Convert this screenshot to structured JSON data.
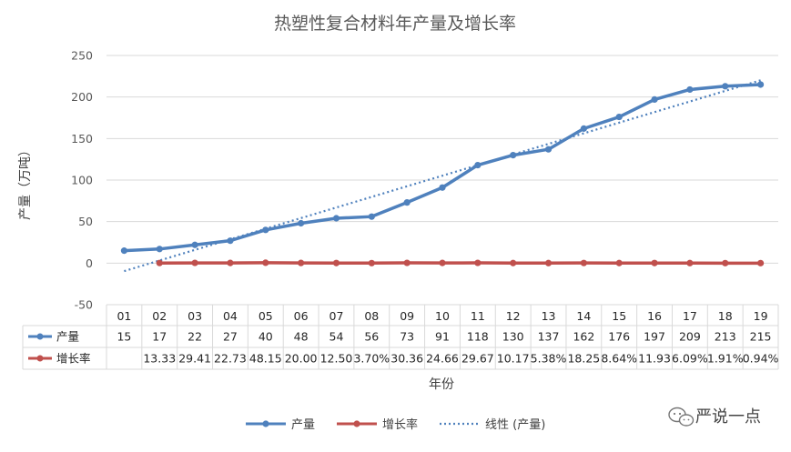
{
  "chart_data": {
    "type": "line",
    "title": "热塑性复合材料年产量及增长率",
    "xlabel": "年份",
    "ylabel": "产量（万吨）",
    "ylim": [
      -50,
      250
    ],
    "yticks": [
      "-50",
      "0",
      "50",
      "100",
      "150",
      "200",
      "250"
    ],
    "grid": true,
    "legend_position": "bottom",
    "categories": [
      "01",
      "02",
      "03",
      "04",
      "05",
      "06",
      "07",
      "08",
      "09",
      "10",
      "11",
      "12",
      "13",
      "14",
      "15",
      "16",
      "17",
      "18",
      "19"
    ],
    "series": [
      {
        "name": "产量",
        "color": "#4F81BD",
        "values": [
          15,
          17,
          22,
          27,
          40,
          48,
          54,
          56,
          73,
          91,
          118,
          130,
          137,
          162,
          176,
          197,
          209,
          213,
          215
        ],
        "table_labels": [
          "15",
          "17",
          "22",
          "27",
          "40",
          "48",
          "54",
          "56",
          "73",
          "91",
          "118",
          "130",
          "137",
          "162",
          "176",
          "197",
          "209",
          "213",
          "215"
        ]
      },
      {
        "name": "增长率",
        "color": "#C0504D",
        "values": [
          null,
          13.33,
          29.41,
          22.73,
          48.15,
          20.0,
          12.5,
          3.7,
          30.36,
          24.66,
          29.67,
          10.17,
          5.38,
          18.25,
          8.64,
          11.93,
          6.09,
          1.91,
          0.94
        ],
        "plotted_values": [
          null,
          0.1333,
          0.2941,
          0.2273,
          0.4815,
          0.2,
          0.125,
          0.037,
          0.3036,
          0.2466,
          0.2967,
          0.1017,
          0.0538,
          0.1825,
          0.0864,
          0.1193,
          0.0609,
          0.0191,
          0.0094
        ],
        "table_labels": [
          "",
          "13.33",
          "29.41",
          "22.73",
          "48.15",
          "20.00",
          "12.50",
          "3.70%",
          "30.36",
          "24.66",
          "29.67",
          "10.17",
          "5.38%",
          "18.25",
          "8.64%",
          "11.93",
          "6.09%",
          "1.91%",
          "0.94%"
        ]
      }
    ],
    "trendline": {
      "name": "线性 (产量)",
      "type": "linear",
      "of_series": "产量",
      "color": "#4F81BD"
    }
  },
  "watermark": {
    "text": "严说一点",
    "icon": "wechat-icon"
  }
}
